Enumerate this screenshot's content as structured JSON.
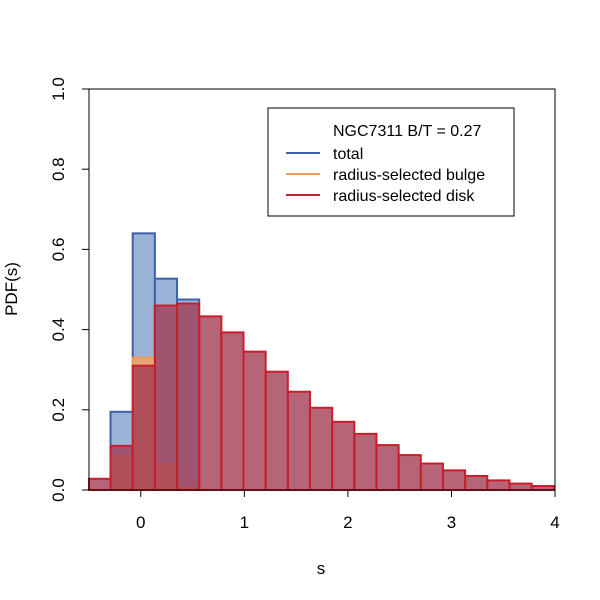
{
  "chart_data": {
    "type": "histogram",
    "xlabel": "s",
    "ylabel": "PDF(s)",
    "xlim": [
      -0.5,
      4.0
    ],
    "ylim": [
      0.0,
      1.0
    ],
    "xticks": [
      0,
      1,
      2,
      3,
      4
    ],
    "xtick_labels": [
      "0",
      "1",
      "2",
      "3",
      "4"
    ],
    "yticks": [
      0.0,
      0.2,
      0.4,
      0.6,
      0.8,
      1.0
    ],
    "ytick_labels": [
      "0.0",
      "0.2",
      "0.4",
      "0.6",
      "0.8",
      "1.0"
    ],
    "bin_width": 0.2143,
    "legend_title": "NGC7311 B/T = 0.27",
    "series": [
      {
        "name": "total",
        "fill": "#7f9dcc",
        "edge": "#3b62a8",
        "opacity": 0.78,
        "bins": [
          {
            "x0": -0.292,
            "x1": -0.078,
            "y": 0.195
          },
          {
            "x0": -0.078,
            "x1": 0.136,
            "y": 0.64
          },
          {
            "x0": 0.136,
            "x1": 0.35,
            "y": 0.527
          },
          {
            "x0": 0.35,
            "x1": 0.564,
            "y": 0.475
          }
        ]
      },
      {
        "name": "radius-selected bulge",
        "fill": "#f5a362",
        "edge": "#f59a4e",
        "opacity": 0.82,
        "bins": [
          {
            "x0": -0.292,
            "x1": -0.078,
            "y": 0.085
          },
          {
            "x0": -0.078,
            "x1": 0.136,
            "y": 0.33
          },
          {
            "x0": 0.136,
            "x1": 0.35,
            "y": 0.065
          },
          {
            "x0": 0.35,
            "x1": 0.564,
            "y": 0.005
          }
        ]
      },
      {
        "name": "radius-selected disk",
        "fill": "#a23a52",
        "edge": "#c81e2c",
        "opacity": 0.78,
        "bins": [
          {
            "x0": -0.506,
            "x1": -0.292,
            "y": 0.028
          },
          {
            "x0": -0.292,
            "x1": -0.078,
            "y": 0.11
          },
          {
            "x0": -0.078,
            "x1": 0.136,
            "y": 0.31
          },
          {
            "x0": 0.136,
            "x1": 0.35,
            "y": 0.46
          },
          {
            "x0": 0.35,
            "x1": 0.564,
            "y": 0.465
          },
          {
            "x0": 0.564,
            "x1": 0.778,
            "y": 0.433
          },
          {
            "x0": 0.778,
            "x1": 0.992,
            "y": 0.393
          },
          {
            "x0": 0.992,
            "x1": 1.206,
            "y": 0.345
          },
          {
            "x0": 1.206,
            "x1": 1.42,
            "y": 0.295
          },
          {
            "x0": 1.42,
            "x1": 1.634,
            "y": 0.245
          },
          {
            "x0": 1.634,
            "x1": 1.848,
            "y": 0.205
          },
          {
            "x0": 1.848,
            "x1": 2.062,
            "y": 0.17
          },
          {
            "x0": 2.062,
            "x1": 2.276,
            "y": 0.14
          },
          {
            "x0": 2.276,
            "x1": 2.49,
            "y": 0.112
          },
          {
            "x0": 2.49,
            "x1": 2.704,
            "y": 0.087
          },
          {
            "x0": 2.704,
            "x1": 2.918,
            "y": 0.066
          },
          {
            "x0": 2.918,
            "x1": 3.132,
            "y": 0.049
          },
          {
            "x0": 3.132,
            "x1": 3.346,
            "y": 0.035
          },
          {
            "x0": 3.346,
            "x1": 3.56,
            "y": 0.024
          },
          {
            "x0": 3.56,
            "x1": 3.774,
            "y": 0.016
          },
          {
            "x0": 3.774,
            "x1": 3.988,
            "y": 0.01
          }
        ]
      }
    ],
    "legend": [
      {
        "label": "total",
        "color": "#3b62a8"
      },
      {
        "label": "radius-selected bulge",
        "color": "#f59a4e"
      },
      {
        "label": "radius-selected disk",
        "color": "#c81e2c"
      }
    ]
  }
}
